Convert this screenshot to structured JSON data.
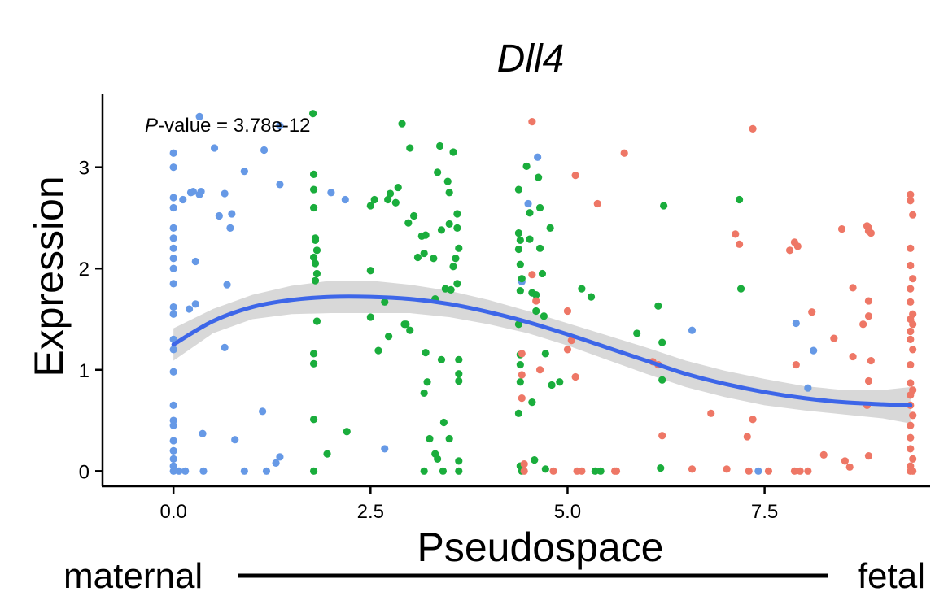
{
  "chart_data": {
    "type": "scatter",
    "title": "Dll4",
    "xlabel": "Pseudospace",
    "ylabel": "Expression",
    "xlim": [
      -0.9,
      9.6
    ],
    "ylim": [
      -0.15,
      3.72
    ],
    "x_ticks": [
      0.0,
      2.5,
      5.0,
      7.5
    ],
    "x_tick_labels": [
      "0.0",
      "2.5",
      "5.0",
      "7.5"
    ],
    "y_ticks": [
      0,
      1,
      2,
      3
    ],
    "y_tick_labels": [
      "0",
      "1",
      "2",
      "3"
    ],
    "grid": false,
    "legend": "none",
    "annotation": {
      "p_letter": "P",
      "p_suffix": "-value = 3.78e-12"
    },
    "bottom_labels": {
      "left": "maternal",
      "right": "fetal"
    },
    "colors": {
      "blue": "#6699e6",
      "green": "#1aad3c",
      "red": "#ee7766",
      "smooth_line": "#3d66e8",
      "confidence_band": "#d4d4d4"
    },
    "series": [
      {
        "color_key": "blue",
        "points": [
          [
            0.0,
            3.14
          ],
          [
            0.0,
            3.0
          ],
          [
            0.0,
            2.7
          ],
          [
            0.0,
            2.6
          ],
          [
            0.0,
            2.4
          ],
          [
            0.0,
            2.3
          ],
          [
            0.0,
            2.2
          ],
          [
            0.0,
            2.1
          ],
          [
            0.0,
            2.0
          ],
          [
            0.0,
            1.85
          ],
          [
            0.0,
            1.62
          ],
          [
            0.0,
            1.55
          ],
          [
            0.0,
            1.3
          ],
          [
            0.0,
            1.2
          ],
          [
            0.0,
            0.98
          ],
          [
            0.0,
            0.65
          ],
          [
            0.0,
            0.5
          ],
          [
            0.0,
            0.45
          ],
          [
            0.0,
            0.3
          ],
          [
            0.0,
            0.2
          ],
          [
            0.0,
            0.12
          ],
          [
            0.0,
            0.05
          ],
          [
            0.0,
            0.0
          ],
          [
            0.07,
            0.0
          ],
          [
            0.12,
            2.68
          ],
          [
            0.15,
            0.0
          ],
          [
            0.2,
            1.6
          ],
          [
            0.22,
            2.75
          ],
          [
            0.25,
            2.76
          ],
          [
            0.28,
            1.65
          ],
          [
            0.28,
            2.07
          ],
          [
            0.33,
            2.73
          ],
          [
            0.35,
            2.76
          ],
          [
            0.37,
            0.37
          ],
          [
            0.38,
            0.0
          ],
          [
            0.33,
            3.5
          ],
          [
            0.52,
            3.19
          ],
          [
            0.58,
            2.52
          ],
          [
            0.65,
            2.74
          ],
          [
            0.65,
            1.22
          ],
          [
            0.68,
            1.84
          ],
          [
            0.72,
            2.4
          ],
          [
            0.74,
            2.54
          ],
          [
            0.78,
            0.31
          ],
          [
            0.9,
            2.96
          ],
          [
            0.9,
            0.0
          ],
          [
            1.15,
            3.17
          ],
          [
            1.13,
            0.59
          ],
          [
            1.18,
            0.0
          ],
          [
            1.3,
            0.08
          ],
          [
            1.35,
            3.41
          ],
          [
            1.35,
            2.83
          ],
          [
            1.35,
            0.14
          ],
          [
            2.0,
            2.75
          ],
          [
            2.18,
            2.68
          ],
          [
            2.68,
            0.22
          ],
          [
            4.42,
            1.87
          ],
          [
            4.5,
            2.64
          ],
          [
            4.62,
            3.1
          ],
          [
            6.58,
            1.39
          ],
          [
            7.9,
            1.46
          ],
          [
            8.12,
            1.19
          ],
          [
            8.05,
            0.82
          ],
          [
            7.42,
            0.0
          ]
        ]
      },
      {
        "color_key": "green",
        "points": [
          [
            1.77,
            3.53
          ],
          [
            1.78,
            2.93
          ],
          [
            1.78,
            2.78
          ],
          [
            1.78,
            2.6
          ],
          [
            1.8,
            2.3
          ],
          [
            1.8,
            2.28
          ],
          [
            1.82,
            2.18
          ],
          [
            1.78,
            2.11
          ],
          [
            1.8,
            2.05
          ],
          [
            1.82,
            1.95
          ],
          [
            1.8,
            1.88
          ],
          [
            1.82,
            1.48
          ],
          [
            1.78,
            1.16
          ],
          [
            1.78,
            1.06
          ],
          [
            1.78,
            0.51
          ],
          [
            1.78,
            0.0
          ],
          [
            1.95,
            0.17
          ],
          [
            2.2,
            0.39
          ],
          [
            2.5,
            2.62
          ],
          [
            2.55,
            2.68
          ],
          [
            2.5,
            1.98
          ],
          [
            2.5,
            1.52
          ],
          [
            2.6,
            1.19
          ],
          [
            2.68,
            1.67
          ],
          [
            2.72,
            2.68
          ],
          [
            2.75,
            2.74
          ],
          [
            2.73,
            1.33
          ],
          [
            2.82,
            2.65
          ],
          [
            2.85,
            2.8
          ],
          [
            2.93,
            1.45
          ],
          [
            2.95,
            1.45
          ],
          [
            2.9,
            3.43
          ],
          [
            2.98,
            2.45
          ],
          [
            3.0,
            3.19
          ],
          [
            3.0,
            1.39
          ],
          [
            3.05,
            2.52
          ],
          [
            3.1,
            2.11
          ],
          [
            3.15,
            2.32
          ],
          [
            3.2,
            2.33
          ],
          [
            3.18,
            2.15
          ],
          [
            3.2,
            1.17
          ],
          [
            3.22,
            0.88
          ],
          [
            3.18,
            0.77
          ],
          [
            3.25,
            0.32
          ],
          [
            3.18,
            0.0
          ],
          [
            3.3,
            2.1
          ],
          [
            3.32,
            1.7
          ],
          [
            3.32,
            0.17
          ],
          [
            3.35,
            0.12
          ],
          [
            3.38,
            3.21
          ],
          [
            3.35,
            2.95
          ],
          [
            3.4,
            2.38
          ],
          [
            3.4,
            1.1
          ],
          [
            3.42,
            0.0
          ],
          [
            3.43,
            0.48
          ],
          [
            3.45,
            1.8
          ],
          [
            3.48,
            2.86
          ],
          [
            3.5,
            2.75
          ],
          [
            3.5,
            0.32
          ],
          [
            3.52,
            1.79
          ],
          [
            3.5,
            2.44
          ],
          [
            3.55,
            3.15
          ],
          [
            3.55,
            2.02
          ],
          [
            3.6,
            2.54
          ],
          [
            3.6,
            2.4
          ],
          [
            3.62,
            2.2
          ],
          [
            3.58,
            2.1
          ],
          [
            3.6,
            1.85
          ],
          [
            3.62,
            1.1
          ],
          [
            3.62,
            0.96
          ],
          [
            3.62,
            0.89
          ],
          [
            3.62,
            0.0
          ],
          [
            3.62,
            0.1
          ],
          [
            4.38,
            2.78
          ],
          [
            4.38,
            2.35
          ],
          [
            4.4,
            2.28
          ],
          [
            4.38,
            2.19
          ],
          [
            4.4,
            2.04
          ],
          [
            4.42,
            1.9
          ],
          [
            4.4,
            1.78
          ],
          [
            4.38,
            1.45
          ],
          [
            4.4,
            1.15
          ],
          [
            4.4,
            1.05
          ],
          [
            4.4,
            0.88
          ],
          [
            4.38,
            0.57
          ],
          [
            4.4,
            0.05
          ],
          [
            4.42,
            0.0
          ],
          [
            4.48,
            3.01
          ],
          [
            4.52,
            2.55
          ],
          [
            4.52,
            2.29
          ],
          [
            4.55,
            1.76
          ],
          [
            4.6,
            1.58
          ],
          [
            4.6,
            1.74
          ],
          [
            4.63,
            2.9
          ],
          [
            4.65,
            2.6
          ],
          [
            4.65,
            2.2
          ],
          [
            4.7,
            1.53
          ],
          [
            4.68,
            1.95
          ],
          [
            4.72,
            1.16
          ],
          [
            4.78,
            2.4
          ],
          [
            4.72,
            0.02
          ],
          [
            4.58,
            0.11
          ],
          [
            4.55,
            0.68
          ],
          [
            4.8,
            0.85
          ],
          [
            4.9,
            0.88
          ],
          [
            5.18,
            1.8
          ],
          [
            5.3,
            1.72
          ],
          [
            5.35,
            0.0
          ],
          [
            5.42,
            0.0
          ],
          [
            5.88,
            1.36
          ],
          [
            6.15,
            1.63
          ],
          [
            6.18,
            0.03
          ],
          [
            6.2,
            0.9
          ],
          [
            6.22,
            2.62
          ],
          [
            6.2,
            1.27
          ],
          [
            7.18,
            2.68
          ],
          [
            7.2,
            1.8
          ]
        ]
      },
      {
        "color_key": "red",
        "points": [
          [
            4.42,
            1.16
          ],
          [
            4.42,
            0.95
          ],
          [
            4.42,
            0.72
          ],
          [
            4.45,
            0.07
          ],
          [
            4.45,
            0.0
          ],
          [
            4.55,
            3.45
          ],
          [
            4.55,
            1.94
          ],
          [
            4.6,
            1.68
          ],
          [
            4.65,
            1.0
          ],
          [
            4.82,
            0.0
          ],
          [
            5.0,
            1.2
          ],
          [
            5.05,
            1.29
          ],
          [
            5.0,
            1.58
          ],
          [
            5.1,
            2.92
          ],
          [
            5.1,
            0.93
          ],
          [
            5.12,
            0.0
          ],
          [
            5.18,
            0.0
          ],
          [
            5.38,
            2.64
          ],
          [
            5.6,
            0.0
          ],
          [
            5.62,
            0.0
          ],
          [
            5.72,
            3.14
          ],
          [
            6.08,
            1.08
          ],
          [
            6.2,
            0.35
          ],
          [
            6.15,
            1.05
          ],
          [
            6.58,
            0.02
          ],
          [
            6.82,
            0.57
          ],
          [
            7.02,
            0.02
          ],
          [
            7.13,
            2.34
          ],
          [
            7.18,
            2.24
          ],
          [
            7.28,
            0.34
          ],
          [
            7.3,
            0.0
          ],
          [
            7.35,
            3.38
          ],
          [
            7.35,
            0.51
          ],
          [
            7.55,
            0.0
          ],
          [
            7.82,
            2.18
          ],
          [
            7.88,
            2.26
          ],
          [
            7.92,
            2.22
          ],
          [
            7.9,
            1.05
          ],
          [
            7.88,
            0.0
          ],
          [
            7.95,
            0.0
          ],
          [
            8.05,
            0.0
          ],
          [
            8.1,
            1.57
          ],
          [
            8.25,
            0.16
          ],
          [
            8.38,
            1.31
          ],
          [
            8.48,
            2.39
          ],
          [
            8.52,
            0.1
          ],
          [
            8.58,
            0.04
          ],
          [
            8.62,
            1.81
          ],
          [
            8.62,
            1.13
          ],
          [
            8.75,
            1.45
          ],
          [
            8.8,
            2.42
          ],
          [
            8.82,
            2.37
          ],
          [
            8.82,
            2.4
          ],
          [
            8.85,
            2.35
          ],
          [
            8.82,
            1.68
          ],
          [
            8.82,
            1.53
          ],
          [
            8.85,
            1.09
          ],
          [
            8.82,
            0.89
          ],
          [
            8.8,
            0.65
          ],
          [
            8.82,
            0.15
          ],
          [
            9.35,
            2.73
          ],
          [
            9.35,
            2.67
          ],
          [
            9.38,
            2.53
          ],
          [
            9.35,
            2.2
          ],
          [
            9.35,
            2.03
          ],
          [
            9.38,
            1.9
          ],
          [
            9.35,
            1.8
          ],
          [
            9.35,
            1.67
          ],
          [
            9.38,
            1.55
          ],
          [
            9.35,
            1.5
          ],
          [
            9.38,
            1.45
          ],
          [
            9.35,
            1.38
          ],
          [
            9.35,
            1.3
          ],
          [
            9.38,
            1.2
          ],
          [
            9.35,
            1.05
          ],
          [
            9.35,
            0.87
          ],
          [
            9.38,
            0.8
          ],
          [
            9.35,
            0.75
          ],
          [
            9.35,
            0.65
          ],
          [
            9.38,
            0.55
          ],
          [
            9.35,
            0.45
          ],
          [
            9.35,
            0.33
          ],
          [
            9.35,
            0.22
          ],
          [
            9.38,
            0.12
          ],
          [
            9.35,
            0.05
          ],
          [
            9.38,
            0.0
          ],
          [
            9.35,
            0.0
          ]
        ]
      }
    ],
    "smooth": {
      "x": [
        0.0,
        0.5,
        1.0,
        1.5,
        2.0,
        2.5,
        3.0,
        3.5,
        4.0,
        4.5,
        5.0,
        5.5,
        6.0,
        6.5,
        7.0,
        7.5,
        8.0,
        8.5,
        9.0,
        9.35
      ],
      "y": [
        1.25,
        1.48,
        1.62,
        1.69,
        1.72,
        1.72,
        1.7,
        1.65,
        1.57,
        1.47,
        1.35,
        1.22,
        1.09,
        0.96,
        0.86,
        0.78,
        0.72,
        0.68,
        0.66,
        0.65
      ],
      "lower": [
        1.09,
        1.36,
        1.5,
        1.55,
        1.56,
        1.56,
        1.56,
        1.52,
        1.45,
        1.36,
        1.24,
        1.1,
        0.96,
        0.83,
        0.73,
        0.65,
        0.6,
        0.56,
        0.52,
        0.47
      ],
      "upper": [
        1.41,
        1.6,
        1.74,
        1.83,
        1.88,
        1.88,
        1.84,
        1.78,
        1.69,
        1.58,
        1.46,
        1.34,
        1.22,
        1.09,
        0.99,
        0.91,
        0.84,
        0.8,
        0.8,
        0.83
      ]
    }
  }
}
